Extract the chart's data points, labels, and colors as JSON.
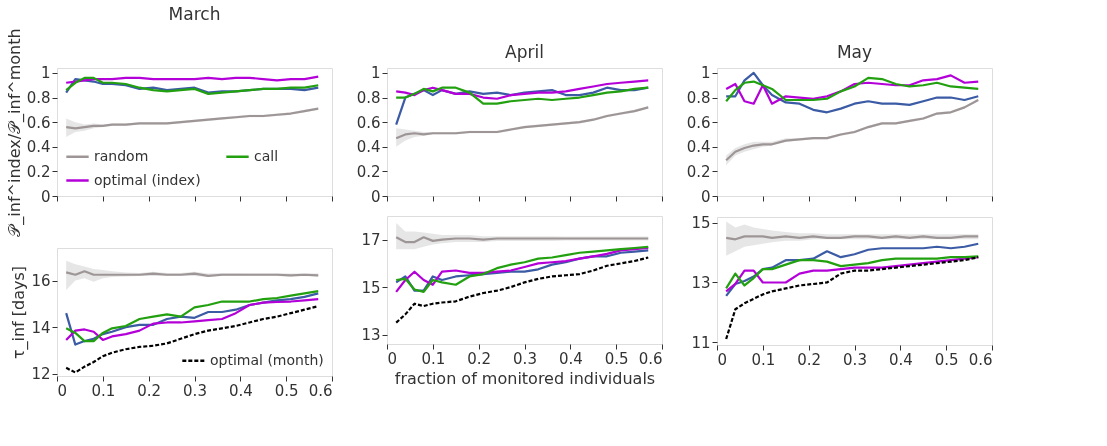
{
  "chart_data": [
    {
      "type": "line",
      "title": "March",
      "ylabel": "𝒫_inf^index/𝒫_inf^month",
      "x": [
        0.02,
        0.04,
        0.06,
        0.08,
        0.1,
        0.12,
        0.15,
        0.18,
        0.21,
        0.24,
        0.27,
        0.3,
        0.33,
        0.36,
        0.39,
        0.42,
        0.45,
        0.48,
        0.51,
        0.54,
        0.57
      ],
      "xlim": [
        0,
        0.6
      ],
      "xticks": [
        0,
        0.1,
        0.2,
        0.3,
        0.4,
        0.5,
        0.6
      ],
      "ylim": [
        0,
        1.04
      ],
      "yticks": [
        0,
        0.2,
        0.4,
        0.6,
        0.8,
        1
      ],
      "tick_labels": "y",
      "grid": false,
      "legend": "bottom left",
      "line_style": "solid",
      "series": [
        {
          "name": "random",
          "color": "#9e9696",
          "values": [
            0.56,
            0.55,
            0.56,
            0.57,
            0.57,
            0.58,
            0.58,
            0.59,
            0.59,
            0.59,
            0.6,
            0.61,
            0.62,
            0.63,
            0.64,
            0.65,
            0.65,
            0.66,
            0.67,
            0.69,
            0.71
          ],
          "lower": [
            0.48,
            0.52,
            0.53,
            0.55,
            0.56,
            0.57,
            0.57,
            0.58,
            0.58,
            0.58,
            0.59,
            0.6,
            0.61,
            0.62,
            0.63,
            0.64,
            0.64,
            0.65,
            0.66,
            0.68,
            0.7
          ],
          "upper": [
            0.63,
            0.6,
            0.58,
            0.59,
            0.58,
            0.59,
            0.59,
            0.6,
            0.6,
            0.6,
            0.61,
            0.62,
            0.63,
            0.64,
            0.65,
            0.66,
            0.66,
            0.67,
            0.68,
            0.7,
            0.72
          ]
        },
        {
          "color": "#3b5ba5",
          "values": [
            0.84,
            0.95,
            0.94,
            0.93,
            0.91,
            0.91,
            0.9,
            0.87,
            0.88,
            0.86,
            0.87,
            0.88,
            0.84,
            0.85,
            0.85,
            0.86,
            0.87,
            0.87,
            0.87,
            0.86,
            0.88
          ]
        },
        {
          "name": "optimal (index)",
          "color": "#b400d8",
          "values": [
            0.92,
            0.93,
            0.94,
            0.95,
            0.95,
            0.95,
            0.96,
            0.96,
            0.95,
            0.95,
            0.95,
            0.95,
            0.96,
            0.95,
            0.96,
            0.96,
            0.95,
            0.94,
            0.95,
            0.95,
            0.97
          ]
        },
        {
          "name": "call",
          "color": "#22a00f",
          "values": [
            0.86,
            0.92,
            0.96,
            0.96,
            0.92,
            0.92,
            0.91,
            0.88,
            0.86,
            0.85,
            0.86,
            0.87,
            0.83,
            0.84,
            0.85,
            0.86,
            0.87,
            0.87,
            0.88,
            0.88,
            0.9
          ]
        }
      ]
    },
    {
      "type": "line",
      "title": "April",
      "x": [
        0.02,
        0.04,
        0.06,
        0.08,
        0.1,
        0.12,
        0.15,
        0.18,
        0.21,
        0.24,
        0.27,
        0.3,
        0.33,
        0.36,
        0.39,
        0.42,
        0.45,
        0.48,
        0.51,
        0.54,
        0.57
      ],
      "xlim": [
        0,
        0.6
      ],
      "xticks": [
        0,
        0.1,
        0.2,
        0.3,
        0.4,
        0.5,
        0.6
      ],
      "ylim": [
        0,
        1.04
      ],
      "yticks": [
        0,
        0.2,
        0.4,
        0.6,
        0.8,
        1
      ],
      "tick_labels": "y",
      "grid": false,
      "line_style": "solid",
      "series": [
        {
          "color": "#9e9696",
          "values": [
            0.47,
            0.5,
            0.51,
            0.5,
            0.51,
            0.51,
            0.51,
            0.52,
            0.52,
            0.52,
            0.54,
            0.56,
            0.57,
            0.58,
            0.59,
            0.6,
            0.62,
            0.65,
            0.67,
            0.69,
            0.72
          ],
          "lower": [
            0.4,
            0.45,
            0.48,
            0.49,
            0.5,
            0.5,
            0.5,
            0.51,
            0.51,
            0.51,
            0.53,
            0.55,
            0.56,
            0.57,
            0.58,
            0.59,
            0.61,
            0.64,
            0.66,
            0.68,
            0.71
          ],
          "upper": [
            0.55,
            0.54,
            0.53,
            0.52,
            0.52,
            0.52,
            0.52,
            0.53,
            0.53,
            0.53,
            0.55,
            0.57,
            0.58,
            0.59,
            0.6,
            0.61,
            0.63,
            0.66,
            0.68,
            0.7,
            0.73
          ]
        },
        {
          "color": "#3b5ba5",
          "values": [
            0.58,
            0.8,
            0.83,
            0.86,
            0.82,
            0.86,
            0.83,
            0.85,
            0.83,
            0.84,
            0.82,
            0.84,
            0.85,
            0.86,
            0.82,
            0.82,
            0.84,
            0.88,
            0.86,
            0.86,
            0.88
          ]
        },
        {
          "color": "#b400d8",
          "values": [
            0.85,
            0.84,
            0.82,
            0.86,
            0.88,
            0.86,
            0.83,
            0.83,
            0.8,
            0.79,
            0.82,
            0.83,
            0.84,
            0.84,
            0.85,
            0.87,
            0.89,
            0.91,
            0.92,
            0.93,
            0.94
          ]
        },
        {
          "color": "#22a00f",
          "values": [
            0.8,
            0.8,
            0.83,
            0.87,
            0.85,
            0.88,
            0.88,
            0.84,
            0.75,
            0.75,
            0.77,
            0.78,
            0.79,
            0.78,
            0.79,
            0.8,
            0.82,
            0.84,
            0.85,
            0.87,
            0.88
          ]
        }
      ]
    },
    {
      "type": "line",
      "title": "May",
      "x": [
        0.02,
        0.04,
        0.06,
        0.08,
        0.1,
        0.12,
        0.15,
        0.18,
        0.21,
        0.24,
        0.27,
        0.3,
        0.33,
        0.36,
        0.39,
        0.42,
        0.45,
        0.48,
        0.51,
        0.54,
        0.57
      ],
      "xlim": [
        0,
        0.6
      ],
      "xticks": [
        0,
        0.1,
        0.2,
        0.3,
        0.4,
        0.5,
        0.6
      ],
      "ylim": [
        0,
        1.04
      ],
      "yticks": [
        0,
        0.2,
        0.4,
        0.6,
        0.8,
        1
      ],
      "tick_labels": "y",
      "grid": false,
      "line_style": "solid",
      "series": [
        {
          "color": "#9e9696",
          "values": [
            0.29,
            0.36,
            0.39,
            0.41,
            0.42,
            0.42,
            0.45,
            0.46,
            0.47,
            0.47,
            0.5,
            0.52,
            0.56,
            0.59,
            0.59,
            0.61,
            0.63,
            0.67,
            0.68,
            0.72,
            0.78
          ],
          "lower": [
            0.25,
            0.33,
            0.36,
            0.38,
            0.4,
            0.41,
            0.44,
            0.45,
            0.46,
            0.46,
            0.49,
            0.51,
            0.55,
            0.58,
            0.58,
            0.6,
            0.62,
            0.66,
            0.67,
            0.71,
            0.77
          ],
          "upper": [
            0.33,
            0.39,
            0.42,
            0.44,
            0.44,
            0.44,
            0.47,
            0.47,
            0.48,
            0.48,
            0.51,
            0.53,
            0.57,
            0.6,
            0.6,
            0.62,
            0.64,
            0.68,
            0.69,
            0.73,
            0.79
          ]
        },
        {
          "color": "#3b5ba5",
          "values": [
            0.81,
            0.81,
            0.94,
            1.0,
            0.9,
            0.82,
            0.76,
            0.75,
            0.7,
            0.68,
            0.71,
            0.75,
            0.77,
            0.75,
            0.75,
            0.74,
            0.77,
            0.8,
            0.8,
            0.78,
            0.81
          ]
        },
        {
          "color": "#b400d8",
          "values": [
            0.87,
            0.91,
            0.77,
            0.75,
            0.9,
            0.75,
            0.81,
            0.8,
            0.79,
            0.81,
            0.85,
            0.91,
            0.92,
            0.91,
            0.9,
            0.9,
            0.94,
            0.95,
            0.98,
            0.92,
            0.93
          ]
        },
        {
          "color": "#22a00f",
          "values": [
            0.77,
            0.86,
            0.92,
            0.93,
            0.9,
            0.87,
            0.78,
            0.78,
            0.78,
            0.79,
            0.85,
            0.89,
            0.96,
            0.95,
            0.91,
            0.89,
            0.9,
            0.92,
            0.89,
            0.88,
            0.87
          ]
        }
      ]
    },
    {
      "type": "line",
      "ylabel": "τ_inf [days]",
      "x": [
        0.02,
        0.04,
        0.06,
        0.08,
        0.1,
        0.12,
        0.15,
        0.18,
        0.21,
        0.24,
        0.27,
        0.3,
        0.33,
        0.36,
        0.39,
        0.42,
        0.45,
        0.48,
        0.51,
        0.54,
        0.57
      ],
      "xlim": [
        0,
        0.6
      ],
      "xticks": [
        0,
        0.1,
        0.2,
        0.3,
        0.4,
        0.5,
        0.6
      ],
      "ylim": [
        11.9,
        17.4
      ],
      "yticks": [
        12,
        14,
        16
      ],
      "grid": false,
      "legend": "bottom right",
      "line_style": "solid",
      "series": [
        {
          "color": "#9e9696",
          "values": [
            16.35,
            16.25,
            16.4,
            16.25,
            16.25,
            16.25,
            16.25,
            16.25,
            16.3,
            16.25,
            16.25,
            16.3,
            16.2,
            16.25,
            16.25,
            16.25,
            16.25,
            16.25,
            16.22,
            16.25,
            16.22
          ],
          "lower": [
            15.6,
            16.0,
            16.1,
            15.95,
            16.1,
            16.15,
            16.18,
            16.2,
            16.2,
            16.2,
            16.2,
            16.2,
            16.15,
            16.2,
            16.2,
            16.2,
            16.2,
            16.2,
            16.17,
            16.2,
            16.17
          ],
          "upper": [
            16.85,
            16.7,
            16.6,
            16.5,
            16.45,
            16.4,
            16.35,
            16.33,
            16.38,
            16.33,
            16.33,
            16.38,
            16.3,
            16.33,
            16.33,
            16.32,
            16.32,
            16.32,
            16.3,
            16.32,
            16.3
          ]
        },
        {
          "color": "#3b5ba5",
          "values": [
            14.6,
            13.25,
            13.4,
            13.5,
            13.7,
            13.8,
            14.0,
            14.1,
            14.1,
            14.35,
            14.45,
            14.4,
            14.65,
            14.65,
            14.75,
            14.95,
            15.05,
            15.15,
            15.2,
            15.3,
            15.45
          ]
        },
        {
          "color": "#b400d8",
          "values": [
            13.45,
            13.85,
            13.9,
            13.8,
            13.45,
            13.6,
            13.7,
            13.85,
            14.15,
            14.2,
            14.2,
            14.25,
            14.3,
            14.35,
            14.6,
            14.95,
            15.05,
            15.08,
            15.1,
            15.15,
            15.2
          ]
        },
        {
          "color": "#22a00f",
          "values": [
            13.95,
            13.75,
            13.4,
            13.4,
            13.75,
            13.95,
            14.05,
            14.35,
            14.45,
            14.55,
            14.45,
            14.85,
            14.95,
            15.1,
            15.1,
            15.1,
            15.2,
            15.25,
            15.35,
            15.45,
            15.55
          ]
        },
        {
          "name": "optimal (month)",
          "color": "#000000",
          "line_style": "dashed",
          "values": [
            12.25,
            12.05,
            12.3,
            12.5,
            12.75,
            12.9,
            13.05,
            13.15,
            13.2,
            13.3,
            13.5,
            13.7,
            13.85,
            13.95,
            14.05,
            14.2,
            14.35,
            14.45,
            14.6,
            14.75,
            14.9
          ]
        }
      ]
    },
    {
      "type": "line",
      "xlabel": "fraction of monitored individuals",
      "x": [
        0.02,
        0.04,
        0.06,
        0.08,
        0.1,
        0.12,
        0.15,
        0.18,
        0.21,
        0.24,
        0.27,
        0.3,
        0.33,
        0.36,
        0.39,
        0.42,
        0.45,
        0.48,
        0.51,
        0.54,
        0.57
      ],
      "xlim": [
        0,
        0.6
      ],
      "xticks": [
        0,
        0.1,
        0.2,
        0.3,
        0.4,
        0.5,
        0.6
      ],
      "ylim": [
        12.6,
        18
      ],
      "yticks": [
        13,
        15,
        17
      ],
      "grid": false,
      "line_style": "solid",
      "series": [
        {
          "color": "#9e9696",
          "values": [
            17.1,
            16.9,
            16.9,
            17.1,
            16.95,
            17.0,
            17.05,
            17.05,
            17.0,
            17.05,
            17.05,
            17.05,
            17.05,
            17.05,
            17.05,
            17.05,
            17.05,
            17.05,
            17.05,
            17.05,
            17.05
          ],
          "lower": [
            16.6,
            16.6,
            16.6,
            16.7,
            16.8,
            16.85,
            16.9,
            16.9,
            16.9,
            16.95,
            16.95,
            16.95,
            16.95,
            16.95,
            16.97,
            16.97,
            16.97,
            16.97,
            16.97,
            16.97,
            16.97
          ],
          "upper": [
            17.7,
            17.35,
            17.35,
            17.3,
            17.25,
            17.2,
            17.2,
            17.2,
            17.15,
            17.15,
            17.15,
            17.15,
            17.15,
            17.15,
            17.13,
            17.13,
            17.13,
            17.13,
            17.13,
            17.13,
            17.13
          ]
        },
        {
          "color": "#3b5ba5",
          "values": [
            15.2,
            15.45,
            14.85,
            14.85,
            15.45,
            15.3,
            15.45,
            15.5,
            15.55,
            15.6,
            15.65,
            15.65,
            15.75,
            15.95,
            16.05,
            16.2,
            16.3,
            16.3,
            16.45,
            16.5,
            16.55
          ]
        },
        {
          "color": "#b400d8",
          "values": [
            14.8,
            15.3,
            15.65,
            15.3,
            15.1,
            15.65,
            15.7,
            15.6,
            15.6,
            15.65,
            15.7,
            15.85,
            16.0,
            16.05,
            16.1,
            16.2,
            16.3,
            16.4,
            16.55,
            16.6,
            16.65
          ]
        },
        {
          "color": "#22a00f",
          "values": [
            15.3,
            15.35,
            14.9,
            14.8,
            15.3,
            15.2,
            15.1,
            15.45,
            15.55,
            15.8,
            15.95,
            16.05,
            16.2,
            16.25,
            16.35,
            16.45,
            16.5,
            16.55,
            16.6,
            16.65,
            16.7
          ]
        },
        {
          "color": "#000000",
          "line_style": "dashed",
          "values": [
            13.5,
            13.85,
            14.3,
            14.2,
            14.3,
            14.35,
            14.4,
            14.6,
            14.75,
            14.85,
            15.0,
            15.2,
            15.35,
            15.45,
            15.5,
            15.55,
            15.7,
            15.9,
            16.0,
            16.1,
            16.25
          ]
        }
      ]
    },
    {
      "type": "line",
      "x": [
        0.02,
        0.04,
        0.06,
        0.08,
        0.1,
        0.12,
        0.15,
        0.18,
        0.21,
        0.24,
        0.27,
        0.3,
        0.33,
        0.36,
        0.39,
        0.42,
        0.45,
        0.48,
        0.51,
        0.54,
        0.57
      ],
      "xlim": [
        0,
        0.6
      ],
      "xticks": [
        0,
        0.1,
        0.2,
        0.3,
        0.4,
        0.5,
        0.6
      ],
      "ylim": [
        10.9,
        15.2
      ],
      "yticks": [
        11,
        13,
        15
      ],
      "grid": false,
      "line_style": "solid",
      "series": [
        {
          "color": "#9e9696",
          "values": [
            14.5,
            14.45,
            14.55,
            14.55,
            14.55,
            14.5,
            14.55,
            14.5,
            14.55,
            14.5,
            14.5,
            14.55,
            14.55,
            14.5,
            14.55,
            14.5,
            14.55,
            14.5,
            14.5,
            14.55,
            14.55
          ],
          "lower": [
            13.9,
            14.05,
            14.2,
            14.25,
            14.3,
            14.35,
            14.4,
            14.4,
            14.45,
            14.45,
            14.45,
            14.45,
            14.45,
            14.45,
            14.45,
            14.45,
            14.45,
            14.45,
            14.45,
            14.45,
            14.45
          ],
          "upper": [
            15.05,
            14.85,
            14.95,
            14.85,
            14.8,
            14.75,
            14.7,
            14.65,
            14.65,
            14.62,
            14.62,
            14.62,
            14.62,
            14.62,
            14.62,
            14.62,
            14.62,
            14.62,
            14.62,
            14.62,
            14.62
          ]
        },
        {
          "color": "#3b5ba5",
          "values": [
            12.55,
            12.95,
            13.05,
            13.2,
            13.45,
            13.5,
            13.75,
            13.75,
            13.8,
            14.05,
            13.85,
            13.95,
            14.1,
            14.15,
            14.15,
            14.15,
            14.15,
            14.2,
            14.15,
            14.2,
            14.3
          ]
        },
        {
          "color": "#b400d8",
          "values": [
            12.7,
            12.95,
            13.4,
            13.4,
            13.0,
            13.0,
            13.0,
            13.3,
            13.4,
            13.4,
            13.45,
            13.5,
            13.5,
            13.5,
            13.55,
            13.6,
            13.65,
            13.7,
            13.75,
            13.8,
            13.85
          ]
        },
        {
          "color": "#22a00f",
          "values": [
            12.8,
            13.3,
            12.9,
            13.15,
            13.45,
            13.45,
            13.6,
            13.75,
            13.75,
            13.7,
            13.55,
            13.6,
            13.65,
            13.75,
            13.8,
            13.8,
            13.8,
            13.8,
            13.85,
            13.85,
            13.88
          ]
        },
        {
          "color": "#000000",
          "line_style": "dashed",
          "values": [
            11.1,
            12.1,
            12.3,
            12.45,
            12.6,
            12.7,
            12.8,
            12.9,
            12.95,
            13.0,
            13.3,
            13.4,
            13.4,
            13.45,
            13.5,
            13.55,
            13.6,
            13.65,
            13.7,
            13.75,
            13.85
          ]
        }
      ]
    }
  ]
}
